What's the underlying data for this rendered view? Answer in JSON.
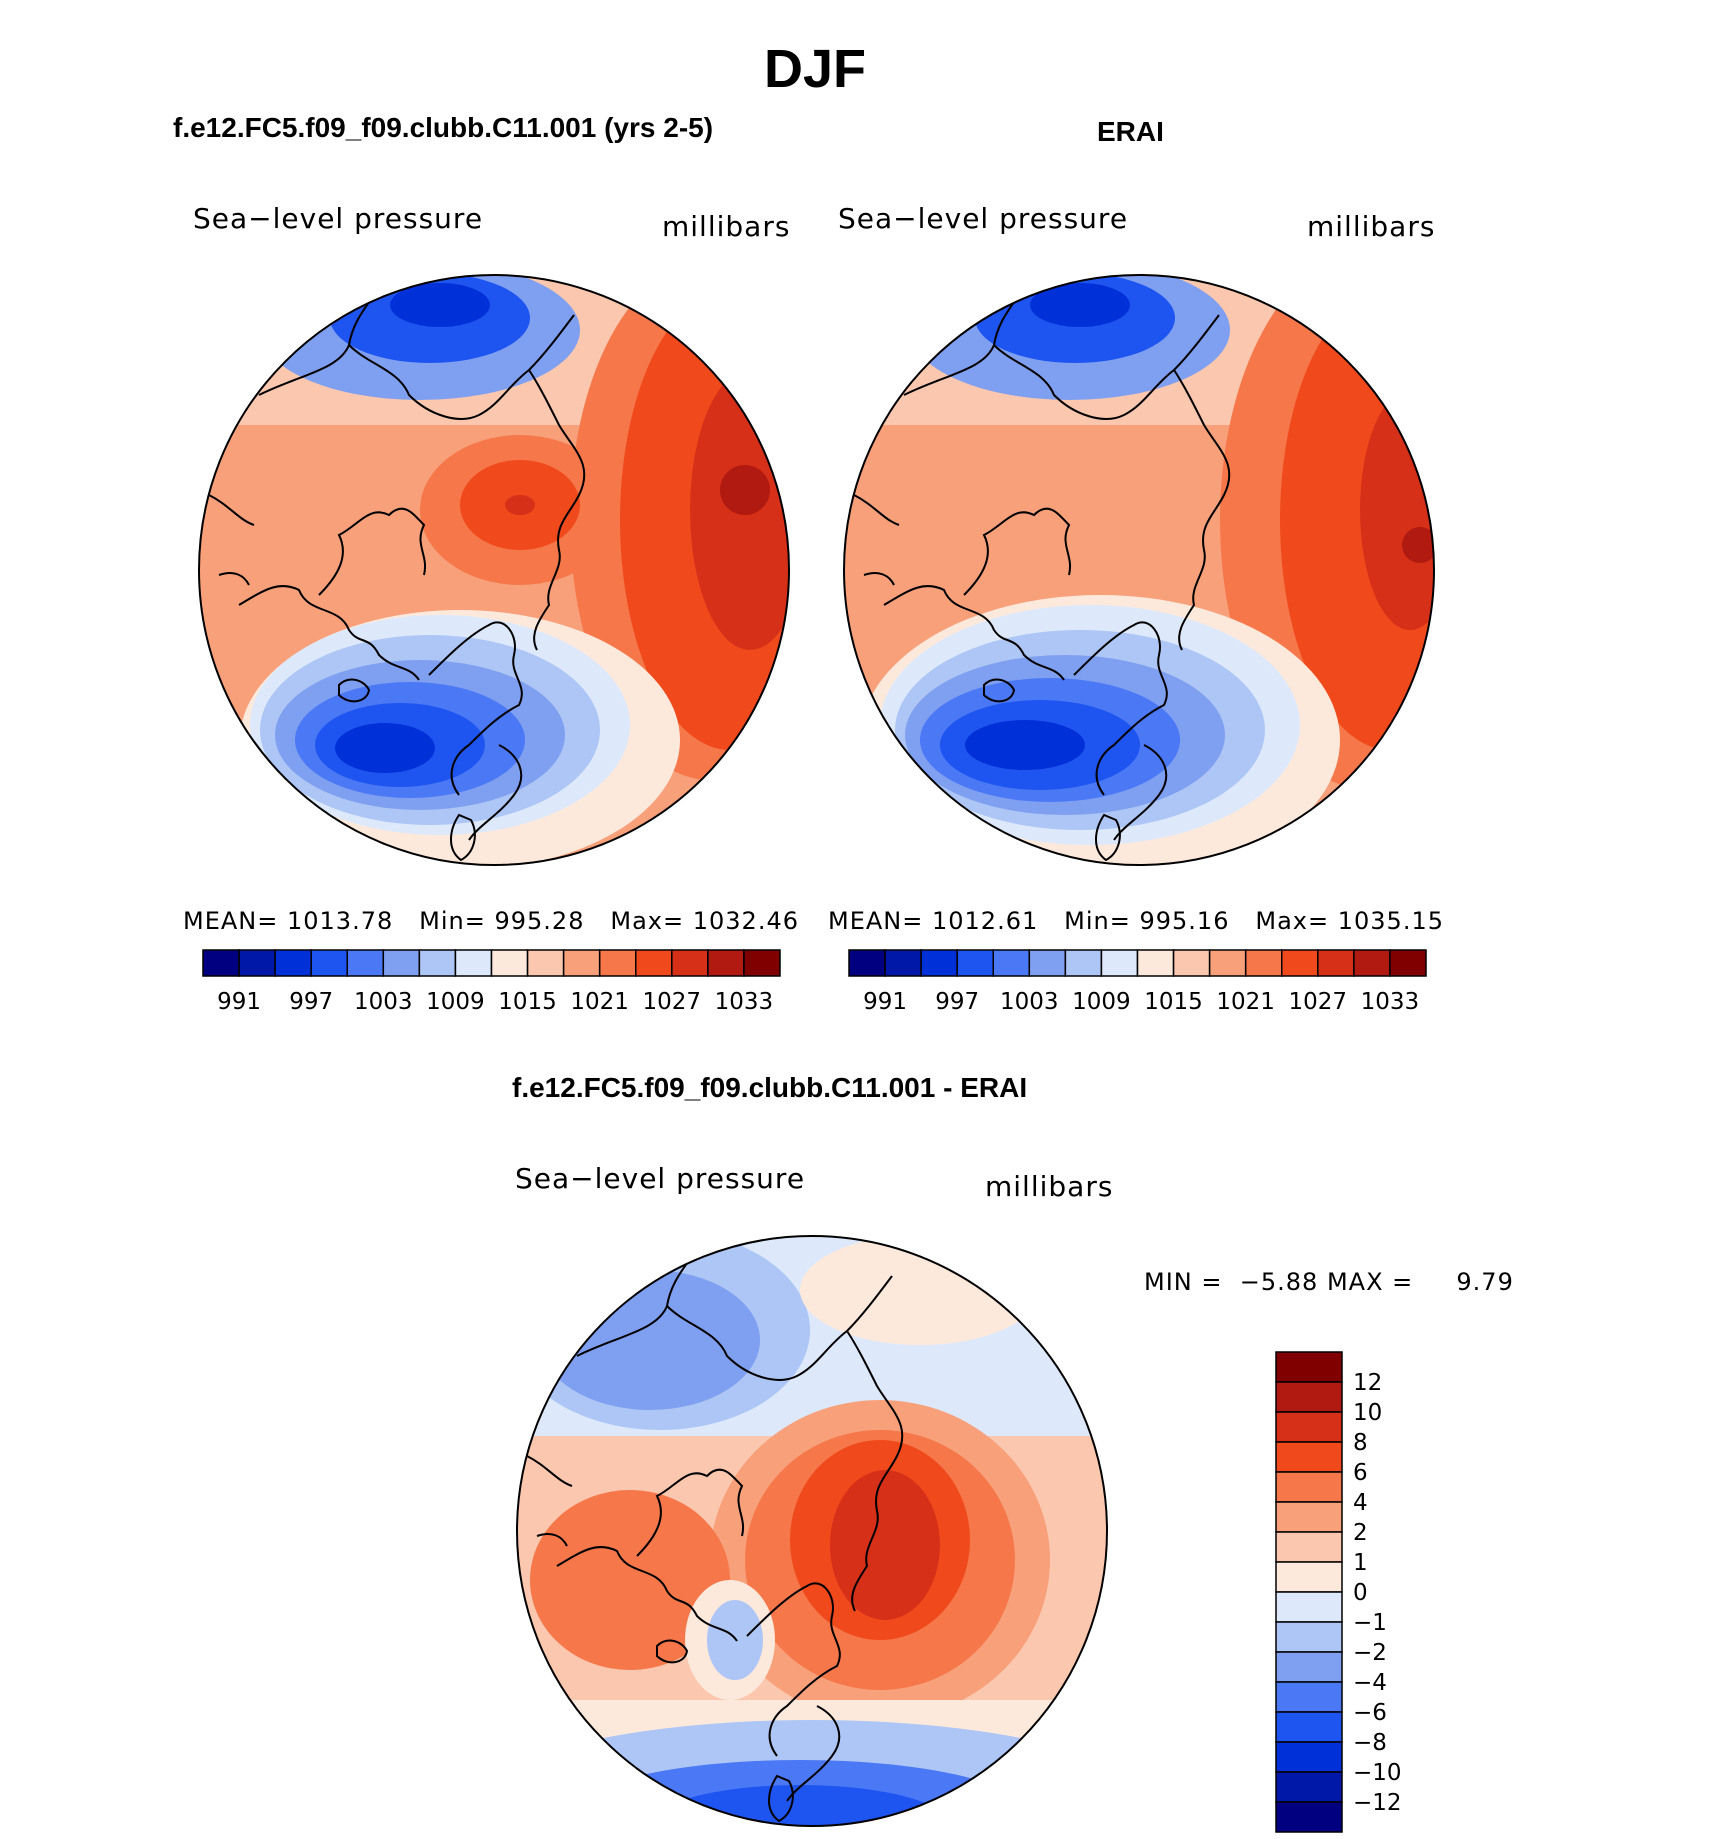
{
  "page": {
    "title": "DJF"
  },
  "panels": [
    {
      "id": "model",
      "title": "f.e12.FC5.f09_f09.clubb.C11.001 (yrs 2-5)",
      "left_label": "Sea−level pressure",
      "right_label": "millibars",
      "stats": {
        "mean_label": "MEAN=",
        "mean": "1013.78",
        "min_label": "Min=",
        "min": "995.28",
        "max_label": "Max=",
        "max": "1032.46"
      }
    },
    {
      "id": "erai",
      "title": "ERAI",
      "left_label": "Sea−level pressure",
      "right_label": "millibars",
      "stats": {
        "mean_label": "MEAN=",
        "mean": "1012.61",
        "min_label": "Min=",
        "min": "995.16",
        "max_label": "Max=",
        "max": "1035.15"
      }
    },
    {
      "id": "difference",
      "title": "f.e12.FC5.f09_f09.clubb.C11.001 - ERAI",
      "left_label": "Sea−level pressure",
      "right_label": "millibars",
      "stats": {
        "min_label": "MIN =",
        "min": "−5.88",
        "max_label": "MAX =",
        "max": "9.79"
      }
    }
  ],
  "colorbars": {
    "absolute": {
      "colors": [
        "#000080",
        "#0018a8",
        "#0030d8",
        "#1e55f0",
        "#4b78f5",
        "#7f9ff0",
        "#adc6f5",
        "#dde9fb",
        "#fde9dc",
        "#fbc7ae",
        "#f7a07a",
        "#f5774a",
        "#f04a1c",
        "#d73018",
        "#b01a10",
        "#800000"
      ],
      "tick_labels": [
        "991",
        "997",
        "1003",
        "1009",
        "1015",
        "1021",
        "1027",
        "1033"
      ]
    },
    "difference": {
      "colors": [
        "#800000",
        "#b01a10",
        "#d73018",
        "#f04a1c",
        "#f5774a",
        "#f7a07a",
        "#fbc7ae",
        "#fde9dc",
        "#dde9fb",
        "#adc6f5",
        "#7f9ff0",
        "#4b78f5",
        "#1e55f0",
        "#0030d8",
        "#0018a8",
        "#000080"
      ],
      "tick_labels": [
        "12",
        "10",
        "8",
        "6",
        "4",
        "2",
        "1",
        "0",
        "−1",
        "−2",
        "−4",
        "−6",
        "−8",
        "−10",
        "−12"
      ]
    }
  }
}
